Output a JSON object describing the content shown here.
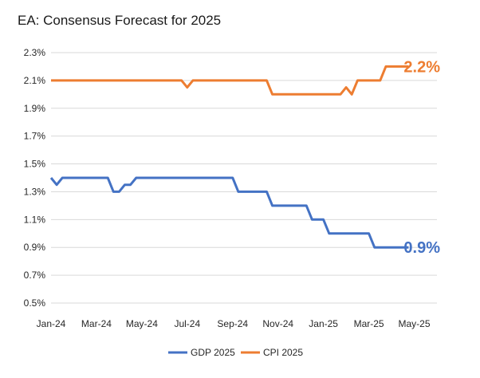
{
  "chart_data": {
    "type": "line",
    "title": "EA: Consensus Forecast for 2025",
    "ylim": [
      0.5,
      2.3
    ],
    "y_ticks": [
      "2.3%",
      "2.1%",
      "1.9%",
      "1.7%",
      "1.5%",
      "1.3%",
      "1.1%",
      "0.9%",
      "0.7%",
      "0.5%"
    ],
    "x_ticks": [
      "Jan-24",
      "Mar-24",
      "May-24",
      "Jul-24",
      "Sep-24",
      "Nov-24",
      "Jan-25",
      "Mar-25",
      "May-25"
    ],
    "x_range_months": [
      0,
      17
    ],
    "grid": "horizontal",
    "legend_position": "bottom",
    "series": [
      {
        "name": "GDP 2025",
        "color": "#4472C4",
        "end_label": "0.9%",
        "points": [
          [
            0.0,
            1.4
          ],
          [
            0.25,
            1.35
          ],
          [
            0.5,
            1.4
          ],
          [
            2.5,
            1.4
          ],
          [
            2.75,
            1.3
          ],
          [
            3.0,
            1.3
          ],
          [
            3.25,
            1.35
          ],
          [
            3.5,
            1.35
          ],
          [
            3.75,
            1.4
          ],
          [
            8.0,
            1.4
          ],
          [
            8.25,
            1.3
          ],
          [
            9.5,
            1.3
          ],
          [
            9.75,
            1.2
          ],
          [
            11.25,
            1.2
          ],
          [
            11.5,
            1.1
          ],
          [
            12.0,
            1.1
          ],
          [
            12.25,
            1.0
          ],
          [
            14.0,
            1.0
          ],
          [
            14.25,
            0.9
          ],
          [
            15.75,
            0.9
          ]
        ]
      },
      {
        "name": "CPI 2025",
        "color": "#ED7D31",
        "end_label": "2.2%",
        "points": [
          [
            0.0,
            2.1
          ],
          [
            5.75,
            2.1
          ],
          [
            6.0,
            2.05
          ],
          [
            6.25,
            2.1
          ],
          [
            9.5,
            2.1
          ],
          [
            9.75,
            2.0
          ],
          [
            12.75,
            2.0
          ],
          [
            13.0,
            2.05
          ],
          [
            13.25,
            2.0
          ],
          [
            13.5,
            2.1
          ],
          [
            14.5,
            2.1
          ],
          [
            14.75,
            2.2
          ],
          [
            15.75,
            2.2
          ]
        ]
      }
    ]
  }
}
